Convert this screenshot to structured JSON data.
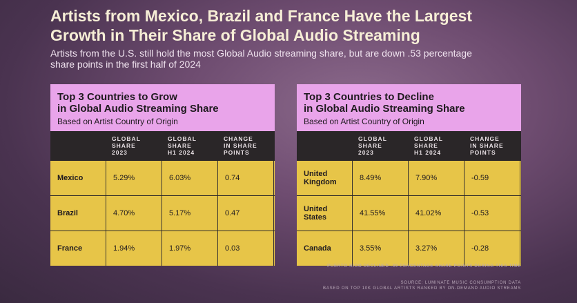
{
  "header": {
    "title_lines": [
      "Artists from Mexico, Brazil and France Have the Largest",
      "Growth in Their Share of Global Audio Streaming"
    ],
    "subtitle_lines": [
      "Artists from the U.S. still hold the most Global Audio streaming share, but are down .53 percentage",
      "share points in the first half of 2024"
    ]
  },
  "tables": [
    {
      "title_lines": [
        "Top 3 Countries to Grow",
        "in Global Audio Streaming Share"
      ],
      "subtitle": "Based on Artist Country of Origin",
      "columns": [
        [
          "GLOBAL",
          "SHARE",
          "2023"
        ],
        [
          "GLOBAL",
          "SHARE",
          "H1 2024"
        ],
        [
          "CHANGE",
          "IN SHARE",
          "POINTS"
        ]
      ],
      "rows": [
        [
          "Mexico",
          "5.29%",
          "6.03%",
          "0.74"
        ],
        [
          "Brazil",
          "4.70%",
          "5.17%",
          "0.47"
        ],
        [
          "France",
          "1.94%",
          "1.97%",
          "0.03"
        ]
      ]
    },
    {
      "title_lines": [
        "Top 3 Countries to Decline",
        "in Global Audio Streaming Share"
      ],
      "subtitle": "Based on Artist Country of Origin",
      "columns": [
        [
          "GLOBAL",
          "SHARE",
          "2023"
        ],
        [
          "GLOBAL",
          "SHARE",
          "H1 2024"
        ],
        [
          "CHANGE",
          "IN SHARE",
          "POINTS"
        ]
      ],
      "rows": [
        [
          "United Kingdom",
          "8.49%",
          "7.90%",
          "-0.59"
        ],
        [
          "United States",
          "41.55%",
          "41.02%",
          "-0.53"
        ],
        [
          "Canada",
          "3.55%",
          "3.27%",
          "-0.28"
        ]
      ]
    }
  ],
  "footnote": "PUERTO RICO DECLINED .39 PERCENTAGE SHARE POINTS DURING THIS TIME",
  "source_lines": [
    "SOURCE: LUMINATE MUSIC CONSUMPTION DATA",
    "BASED ON TOP 10K GLOBAL ARTISTS RANKED BY ON-DEMAND AUDIO STREAMS"
  ]
}
